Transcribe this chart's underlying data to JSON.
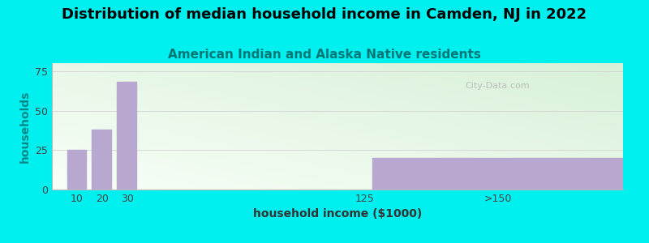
{
  "title": "Distribution of median household income in Camden, NJ in 2022",
  "subtitle": "American Indian and Alaska Native residents",
  "xlabel": "household income ($1000)",
  "ylabel": "households",
  "outer_bg": "#00EFEF",
  "bar_color": "#b8a8d0",
  "bar_edge_color": "#b8a8d0",
  "watermark": "City-Data.com",
  "values": [
    25,
    38,
    68,
    0,
    20
  ],
  "bar_centers": [
    10,
    20,
    30,
    125,
    178
  ],
  "bar_widths": [
    8,
    8,
    8,
    8,
    100
  ],
  "ylim": [
    0,
    80
  ],
  "yticks": [
    0,
    25,
    50,
    75
  ],
  "xtick_positions": [
    10,
    20,
    30,
    125,
    178
  ],
  "xtick_labels": [
    "10",
    "20",
    "30",
    "125",
    ">150"
  ],
  "xlim": [
    0,
    228
  ],
  "title_fontsize": 13,
  "subtitle_fontsize": 11,
  "axis_label_fontsize": 10,
  "tick_fontsize": 9,
  "grad_left_color": "#d8f0d8",
  "grad_right_color": "#f8fff8"
}
